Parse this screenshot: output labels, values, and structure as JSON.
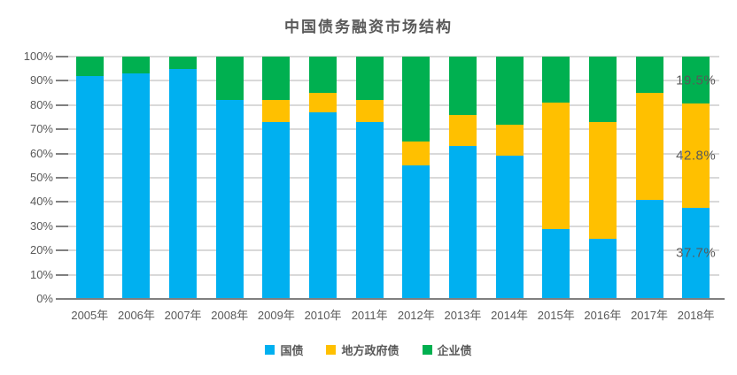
{
  "chart_data": {
    "type": "bar",
    "stacked": true,
    "percent": true,
    "title": "中国债务融资市场结构",
    "categories": [
      "2005年",
      "2006年",
      "2007年",
      "2008年",
      "2009年",
      "2010年",
      "2011年",
      "2012年",
      "2013年",
      "2014年",
      "2015年",
      "2016年",
      "2017年",
      "2018年"
    ],
    "series": [
      {
        "id": "treasury-bonds",
        "name": "国债",
        "color": "#00B0F0",
        "values": [
          92,
          93,
          95,
          82,
          73,
          77,
          73,
          55,
          63,
          59,
          29,
          25,
          41,
          37.7
        ]
      },
      {
        "id": "local-government-bonds",
        "name": "地方政府债",
        "color": "#FFC000",
        "values": [
          0,
          0,
          0,
          0,
          9,
          8,
          9,
          10,
          13,
          13,
          52,
          48,
          44,
          42.8
        ]
      },
      {
        "id": "corporate-bonds",
        "name": "企业债",
        "color": "#00B050",
        "values": [
          8,
          7,
          5,
          18,
          18,
          15,
          18,
          35,
          24,
          28,
          19,
          27,
          15,
          19.5
        ]
      }
    ],
    "xlabel": "",
    "ylabel": "",
    "ylim": [
      0,
      100
    ],
    "y_ticks": [
      "0%",
      "10%",
      "20%",
      "30%",
      "40%",
      "50%",
      "60%",
      "70%",
      "80%",
      "90%",
      "100%"
    ],
    "grid": true,
    "legend_position": "bottom",
    "annotations": [
      {
        "text": "19.5%",
        "category": "2018年",
        "series": "企业债"
      },
      {
        "text": "42.8%",
        "category": "2018年",
        "series": "地方政府债"
      },
      {
        "text": "37.7%",
        "category": "2018年",
        "series": "国债"
      }
    ],
    "style_colors": {
      "text": "#595959",
      "gridline": "#D9D9D9",
      "axis_line": "#7F7F7F"
    }
  }
}
